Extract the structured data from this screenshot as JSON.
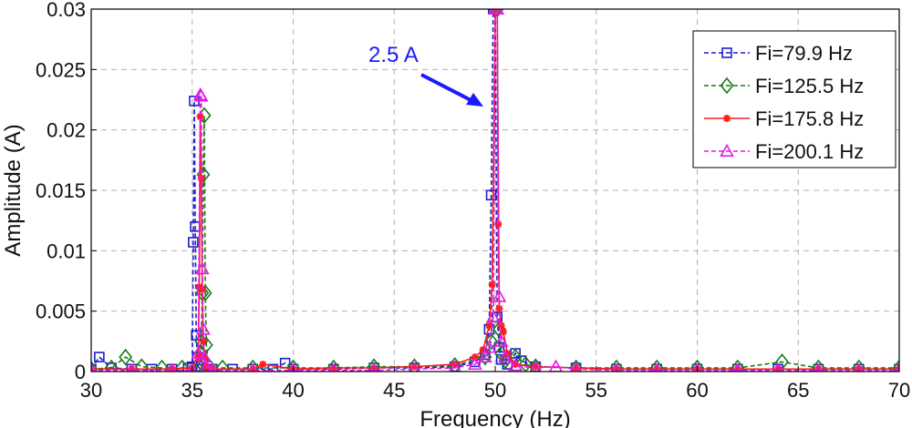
{
  "chart_data": {
    "type": "line",
    "xlabel": "Frequency (Hz)",
    "ylabel": "Amplitude (A)",
    "xlim": [
      30,
      70
    ],
    "ylim": [
      0,
      0.03
    ],
    "xticks": [
      "30",
      "35",
      "40",
      "45",
      "50",
      "55",
      "60",
      "65",
      "70"
    ],
    "yticks": [
      "0",
      "0.005",
      "0.01",
      "0.015",
      "0.02",
      "0.025",
      "0.03"
    ],
    "grid": true,
    "legend_position": "top-right",
    "annotation": {
      "text": "2.5 A",
      "color": "#1a1aff",
      "points_to": [
        49.8,
        0.022
      ]
    },
    "series": [
      {
        "name": "Fi=79.9 Hz",
        "color": "#1f1fcf",
        "marker": "square",
        "dash": "dashed",
        "x": [
          30.0,
          30.4,
          31.0,
          32.0,
          33.0,
          34.0,
          34.8,
          35.0,
          35.05,
          35.1,
          35.15,
          35.2,
          35.25,
          35.3,
          35.4,
          36.0,
          37.0,
          38.0,
          39.0,
          39.6,
          40.0,
          42.0,
          44.0,
          46.0,
          48.0,
          49.0,
          49.5,
          49.7,
          49.8,
          49.9,
          50.0,
          50.1,
          50.2,
          50.3,
          50.6,
          51.0,
          51.3,
          52.0,
          54.0,
          56.0,
          58.0,
          60.0,
          62.0,
          64.0,
          66.0,
          68.0,
          70.0
        ],
        "y": [
          0.0002,
          0.0012,
          0.0003,
          0.0002,
          0.0002,
          0.0002,
          0.0003,
          0.0004,
          0.0107,
          0.0224,
          0.012,
          0.003,
          0.0012,
          0.0004,
          0.0002,
          0.0002,
          0.0002,
          0.0002,
          0.0002,
          0.0007,
          0.0002,
          0.0002,
          0.0003,
          0.0003,
          0.0004,
          0.0008,
          0.0014,
          0.0035,
          0.0146,
          0.03,
          0.03,
          0.0045,
          0.002,
          0.001,
          0.0006,
          0.0015,
          0.0009,
          0.0004,
          0.0003,
          0.0002,
          0.0002,
          0.0002,
          0.0002,
          0.0002,
          0.0002,
          0.0002,
          0.0002
        ]
      },
      {
        "name": "Fi=125.5 Hz",
        "color": "#1a7a1a",
        "marker": "diamond",
        "dash": "dashed",
        "x": [
          30.0,
          31.0,
          31.7,
          32.5,
          33.5,
          34.5,
          35.2,
          35.4,
          35.45,
          35.5,
          35.55,
          35.6,
          35.65,
          35.7,
          35.8,
          36.5,
          38.0,
          40.0,
          42.0,
          44.0,
          46.0,
          48.0,
          49.5,
          49.8,
          50.0,
          50.1,
          50.2,
          50.3,
          50.5,
          51.0,
          51.5,
          52.0,
          54.0,
          56.0,
          58.0,
          60.0,
          62.0,
          64.2,
          66.0,
          68.0,
          70.0
        ],
        "y": [
          0.0002,
          0.0003,
          0.0012,
          0.0004,
          0.0003,
          0.0003,
          0.0004,
          0.0015,
          0.0025,
          0.0065,
          0.0163,
          0.0212,
          0.0065,
          0.0022,
          0.0005,
          0.0003,
          0.0003,
          0.0003,
          0.0003,
          0.0004,
          0.0004,
          0.0005,
          0.0012,
          0.0025,
          0.03,
          0.03,
          0.0035,
          0.0015,
          0.0009,
          0.0012,
          0.0006,
          0.0004,
          0.0003,
          0.0003,
          0.0003,
          0.0003,
          0.0003,
          0.0008,
          0.0003,
          0.0003,
          0.0003
        ]
      },
      {
        "name": "Fi=175.8 Hz",
        "color": "#ff1a1a",
        "marker": "star",
        "dash": "solid",
        "x": [
          30.0,
          32.0,
          34.0,
          35.0,
          35.3,
          35.35,
          35.4,
          35.45,
          35.5,
          35.55,
          35.6,
          35.7,
          36.0,
          38.0,
          38.5,
          40.0,
          42.0,
          44.0,
          46.0,
          48.0,
          49.0,
          49.4,
          49.7,
          49.85,
          50.0,
          50.1,
          50.15,
          50.2,
          50.3,
          50.4,
          50.6,
          51.0,
          52.0,
          54.0,
          56.0,
          58.0,
          60.0,
          62.0,
          64.0,
          66.0,
          68.0,
          70.0
        ],
        "y": [
          0.0002,
          0.0002,
          0.0002,
          0.0003,
          0.0012,
          0.007,
          0.0211,
          0.016,
          0.0068,
          0.0025,
          0.0012,
          0.0004,
          0.0002,
          0.0002,
          0.0006,
          0.0002,
          0.0003,
          0.0003,
          0.0004,
          0.0006,
          0.0012,
          0.0018,
          0.0038,
          0.0072,
          0.03,
          0.03,
          0.0122,
          0.0052,
          0.0038,
          0.0033,
          0.0015,
          0.0006,
          0.0004,
          0.0003,
          0.0002,
          0.0002,
          0.0002,
          0.0002,
          0.0002,
          0.0002,
          0.0002,
          0.0002
        ]
      },
      {
        "name": "Fi=200.1 Hz",
        "color": "#e61ae6",
        "marker": "triangle",
        "dash": "dashed",
        "x": [
          30.0,
          32.0,
          34.0,
          35.0,
          35.3,
          35.4,
          35.45,
          35.5,
          35.55,
          35.6,
          35.7,
          36.0,
          38.0,
          40.0,
          42.0,
          44.0,
          46.0,
          48.0,
          49.0,
          49.5,
          49.7,
          49.9,
          50.0,
          50.1,
          50.2,
          50.3,
          50.5,
          51.0,
          52.0,
          53.0,
          54.0,
          56.0,
          58.0,
          60.0,
          62.0,
          64.0,
          66.0,
          68.0,
          70.0
        ],
        "y": [
          0.0001,
          0.0001,
          0.0001,
          0.0001,
          0.0015,
          0.0229,
          0.0228,
          0.0085,
          0.0035,
          0.0012,
          0.0004,
          0.0001,
          0.0001,
          0.0001,
          0.0001,
          0.0001,
          0.0002,
          0.0003,
          0.0006,
          0.0012,
          0.002,
          0.0045,
          0.03,
          0.03,
          0.0062,
          0.0025,
          0.0012,
          0.0005,
          0.0003,
          0.0004,
          0.0002,
          0.0001,
          0.0001,
          0.0001,
          0.0001,
          0.0001,
          0.0001,
          0.0001,
          0.0001
        ]
      }
    ]
  }
}
